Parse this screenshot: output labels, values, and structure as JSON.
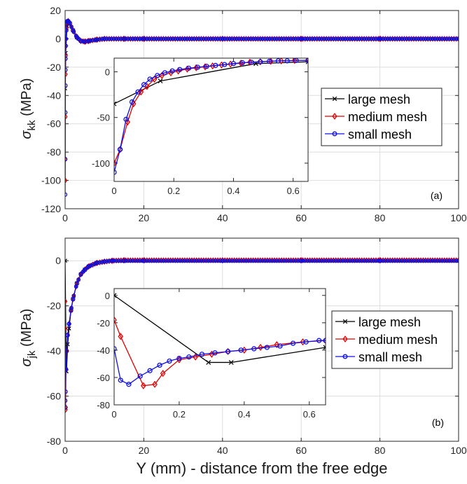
{
  "figure": {
    "xlabel": "Y (mm) - distance from the free edge"
  },
  "chart_data": [
    {
      "type": "line",
      "panel_label": "(a)",
      "ylabel_symbol": "σ",
      "ylabel_sub": "kk",
      "ylabel_unit": " (MPa)",
      "xlim": [
        0,
        100
      ],
      "ylim": [
        -120,
        20
      ],
      "xticks": [
        0,
        20,
        40,
        60,
        80,
        100
      ],
      "yticks": [
        20,
        0,
        -20,
        -40,
        -60,
        -80,
        -100,
        -120
      ],
      "grid": true,
      "legend": {
        "position": "right-inside",
        "entries": [
          "large mesh",
          "medium mesh",
          "small mesh"
        ]
      },
      "series": [
        {
          "name": "large mesh",
          "color": "#000000",
          "marker": "x",
          "x": [
            0,
            0.15,
            0.48,
            0.8,
            1.2,
            2,
            3,
            4,
            5,
            6,
            8,
            10,
            15,
            20,
            40,
            60,
            80,
            100
          ],
          "y": [
            -35,
            -10,
            9,
            12,
            11,
            6,
            1,
            -1.5,
            -2,
            -1.5,
            -0.6,
            0,
            0,
            0,
            0,
            0,
            0,
            0
          ]
        },
        {
          "name": "medium mesh",
          "color": "#e00000",
          "marker": "diamond",
          "x": [
            0,
            0.02,
            0.05,
            0.08,
            0.12,
            0.16,
            0.2,
            0.3,
            0.45,
            0.6,
            0.8,
            1.2,
            2,
            3,
            4,
            5,
            6,
            8,
            10,
            15,
            20,
            40,
            60,
            80,
            100
          ],
          "y": [
            -100,
            -85,
            -55,
            -25,
            -12,
            -5,
            0,
            7,
            10,
            12,
            12.5,
            11,
            6,
            1,
            -1.5,
            -2,
            -1.5,
            -0.6,
            0,
            0,
            0,
            0,
            0,
            0,
            0
          ]
        },
        {
          "name": "small mesh",
          "color": "#1010e0",
          "marker": "circle",
          "x": [
            0,
            0.02,
            0.04,
            0.06,
            0.08,
            0.1,
            0.15,
            0.2,
            0.3,
            0.4,
            0.5,
            0.6,
            0.8,
            1.2,
            2,
            3,
            4,
            5,
            6,
            8,
            10,
            15,
            20,
            40,
            60,
            80,
            100
          ],
          "y": [
            -110,
            -85,
            -52,
            -33,
            -22,
            -14,
            -5,
            0,
            6,
            10,
            12,
            12.5,
            12.5,
            11,
            6,
            1,
            -1.5,
            -2,
            -1.5,
            -0.6,
            0,
            0,
            0,
            0,
            0,
            0,
            0
          ]
        }
      ],
      "inset": {
        "xlim": [
          0,
          0.65
        ],
        "ylim": [
          -120,
          15
        ],
        "xticks": [
          0,
          0.2,
          0.4,
          0.6
        ],
        "yticks": [
          0,
          -50,
          -100
        ],
        "grid": false,
        "series": [
          {
            "name": "large mesh",
            "color": "#000000",
            "marker": "x",
            "x": [
              0,
              0.155,
              0.475,
              0.65
            ],
            "y": [
              -35,
              -10,
              9,
              11
            ]
          },
          {
            "name": "medium mesh",
            "color": "#e00000",
            "marker": "diamond",
            "x": [
              0,
              0.02,
              0.045,
              0.065,
              0.09,
              0.11,
              0.135,
              0.16,
              0.19,
              0.215,
              0.245,
              0.275,
              0.305,
              0.33,
              0.36,
              0.39,
              0.425,
              0.455,
              0.49,
              0.525,
              0.56,
              0.605,
              0.65
            ],
            "y": [
              -100,
              -85,
              -55,
              -35,
              -22,
              -16,
              -8,
              -4,
              -1,
              1,
              3,
              4.5,
              5.5,
              6.5,
              7.5,
              8.5,
              9.5,
              10.5,
              11,
              11.5,
              12,
              12.5,
              12.5
            ]
          },
          {
            "name": "small mesh",
            "color": "#1010e0",
            "marker": "circle",
            "x": [
              0,
              0.02,
              0.04,
              0.06,
              0.08,
              0.1,
              0.12,
              0.145,
              0.17,
              0.195,
              0.22,
              0.25,
              0.28,
              0.31,
              0.34,
              0.37,
              0.4,
              0.43,
              0.46,
              0.49,
              0.52,
              0.55,
              0.58,
              0.61,
              0.65
            ],
            "y": [
              -110,
              -85,
              -52,
              -33,
              -22,
              -14,
              -8,
              -4,
              -1,
              1,
              2.5,
              4,
              5,
              6,
              7,
              8,
              9,
              10,
              10.5,
              11,
              11.5,
              12,
              12,
              12.5,
              12.5
            ]
          }
        ]
      }
    },
    {
      "type": "line",
      "panel_label": "(b)",
      "ylabel_symbol": "σ",
      "ylabel_sub": "jk",
      "ylabel_unit": " (MPa)",
      "xlim": [
        0,
        100
      ],
      "ylim": [
        -80,
        10
      ],
      "xticks": [
        0,
        20,
        40,
        60,
        80,
        100
      ],
      "yticks": [
        0,
        -20,
        -40,
        -60,
        -80
      ],
      "grid": true,
      "legend": {
        "position": "right-inside",
        "entries": [
          "large mesh",
          "medium mesh",
          "small mesh"
        ]
      },
      "series": [
        {
          "name": "large mesh",
          "color": "#000000",
          "marker": "x",
          "x": [
            0,
            0.29,
            0.36,
            0.65,
            1,
            1.5,
            2,
            3,
            4,
            5,
            6,
            8,
            10,
            12,
            15,
            20,
            40,
            60,
            80,
            100
          ],
          "y": [
            0,
            -49,
            -49,
            -37,
            -30,
            -22,
            -17,
            -10,
            -6,
            -4,
            -2.5,
            -1,
            -0.4,
            0,
            0,
            0,
            0,
            0,
            0,
            0
          ]
        },
        {
          "name": "medium mesh",
          "color": "#e00000",
          "marker": "diamond",
          "x": [
            0,
            0.02,
            0.09,
            0.12,
            0.2,
            0.4,
            0.65,
            1,
            1.5,
            2,
            3,
            4,
            5,
            6,
            8,
            10,
            12,
            15,
            20,
            40,
            60,
            80,
            100
          ],
          "y": [
            -18,
            -30,
            -66,
            -65,
            -48,
            -40,
            -33,
            -28,
            -22,
            -17,
            -10,
            -6,
            -4,
            -2.5,
            -1,
            -0.4,
            0,
            0.2,
            0.2,
            0.2,
            0.2,
            0.2,
            0.2
          ]
        },
        {
          "name": "small mesh",
          "color": "#1010e0",
          "marker": "circle",
          "x": [
            0,
            0.02,
            0.05,
            0.1,
            0.2,
            0.4,
            0.65,
            1,
            1.5,
            2,
            3,
            4,
            5,
            6,
            8,
            10,
            12,
            15,
            20,
            40,
            60,
            80,
            100
          ],
          "y": [
            -39,
            -62,
            -65,
            -58,
            -48,
            -40,
            -33,
            -28,
            -22,
            -17,
            -10,
            -6,
            -4,
            -2.5,
            -1,
            -0.4,
            0,
            0,
            0,
            0,
            0,
            0,
            0
          ]
        }
      ],
      "inset": {
        "xlim": [
          0,
          0.65
        ],
        "ylim": [
          -80,
          5
        ],
        "xticks": [
          0,
          0.2,
          0.4,
          0.6
        ],
        "yticks": [
          0,
          -20,
          -40,
          -60,
          -80
        ],
        "grid": false,
        "series": [
          {
            "name": "large mesh",
            "color": "#000000",
            "marker": "x",
            "x": [
              0,
              0.29,
              0.36,
              0.65
            ],
            "y": [
              0,
              -49,
              -49,
              -38
            ]
          },
          {
            "name": "medium mesh",
            "color": "#e00000",
            "marker": "diamond",
            "x": [
              0,
              0.02,
              0.09,
              0.125,
              0.15,
              0.2,
              0.25,
              0.3,
              0.35,
              0.4,
              0.45,
              0.5,
              0.58,
              0.65
            ],
            "y": [
              -18,
              -30,
              -66,
              -65,
              -57,
              -47,
              -45,
              -43,
              -41,
              -40,
              -38,
              -36,
              -34,
              -33
            ]
          },
          {
            "name": "small mesh",
            "color": "#1010e0",
            "marker": "circle",
            "x": [
              0,
              0.02,
              0.045,
              0.08,
              0.11,
              0.14,
              0.17,
              0.2,
              0.23,
              0.27,
              0.31,
              0.35,
              0.39,
              0.43,
              0.47,
              0.51,
              0.55,
              0.59,
              0.63,
              0.65
            ],
            "y": [
              -39,
              -62,
              -65,
              -59,
              -55,
              -51,
              -48,
              -46,
              -45,
              -43,
              -42,
              -41,
              -40,
              -39,
              -38,
              -37,
              -35,
              -34,
              -33,
              -33
            ]
          }
        ]
      }
    }
  ]
}
